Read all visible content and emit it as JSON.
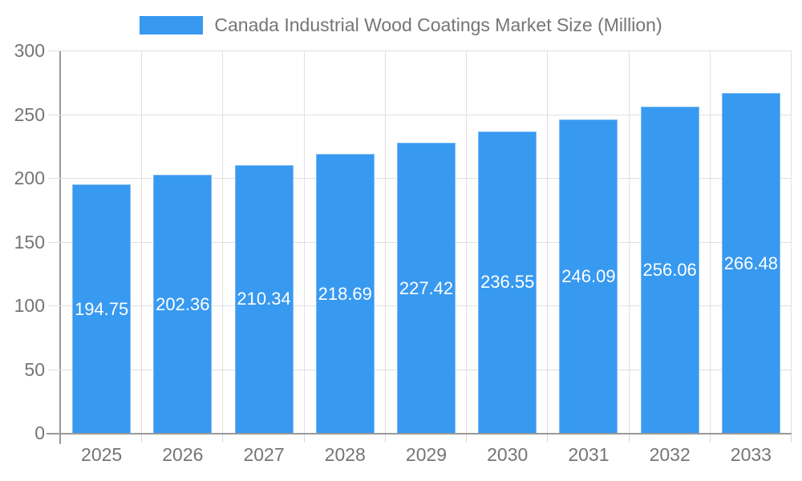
{
  "legend": {
    "swatch_color": "#3899f0"
  },
  "chart_data": {
    "type": "bar",
    "title": "Canada Industrial Wood Coatings Market Size (Million)",
    "categories": [
      "2025",
      "2026",
      "2027",
      "2028",
      "2029",
      "2030",
      "2031",
      "2032",
      "2033"
    ],
    "values": [
      194.75,
      202.36,
      210.34,
      218.69,
      227.42,
      236.55,
      246.09,
      256.06,
      266.48
    ],
    "xlabel": "",
    "ylabel": "",
    "ylim": [
      0,
      300
    ],
    "yticks": [
      0,
      50,
      100,
      150,
      200,
      250,
      300
    ],
    "grid": true,
    "legend_position": "top",
    "value_labels_position": "center-of-bar"
  },
  "colors": {
    "bar": "#3899f0",
    "axis": "#999999",
    "grid": "#e0e0e0",
    "text": "#757575",
    "value_label": "#ffffff",
    "background": "#ffffff"
  }
}
